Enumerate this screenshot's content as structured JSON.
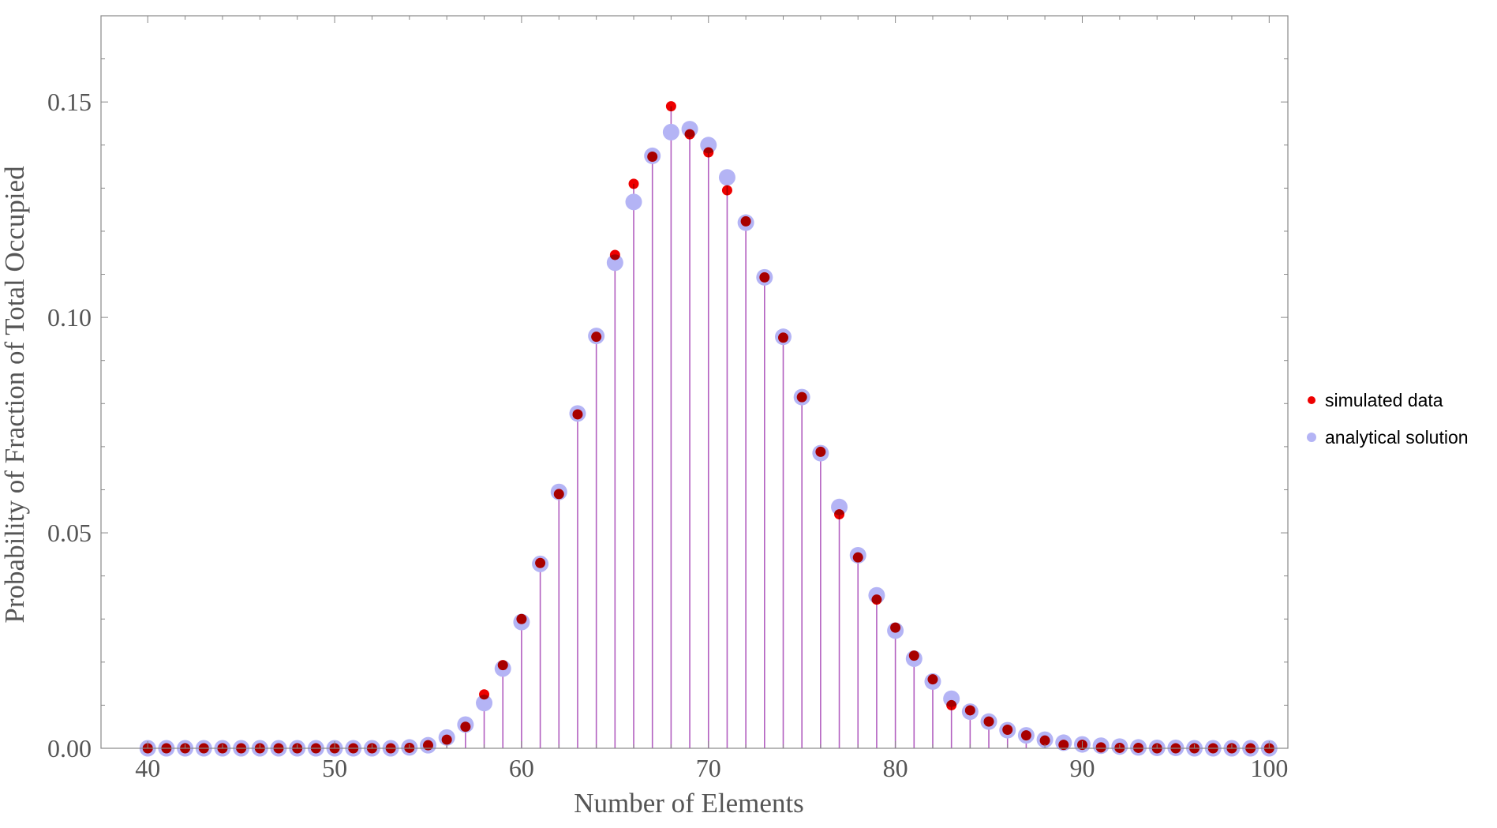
{
  "chart_data": {
    "type": "scatter",
    "xlabel": "Number of Elements",
    "ylabel": "Probability of Fraction of Total Occupied",
    "xlim": [
      37.5,
      101
    ],
    "ylim": [
      0,
      0.17
    ],
    "xticks": [
      40,
      50,
      60,
      70,
      80,
      90,
      100
    ],
    "yticks": [
      0,
      0.05,
      0.1,
      0.15
    ],
    "ytick_labels": [
      "0.00",
      "0.05",
      "0.10",
      "0.15"
    ],
    "legend_position": "right",
    "stems": true,
    "stem_color": "#b25fc0",
    "grid": false,
    "x": [
      40,
      41,
      42,
      43,
      44,
      45,
      46,
      47,
      48,
      49,
      50,
      51,
      52,
      53,
      54,
      55,
      56,
      57,
      58,
      59,
      60,
      61,
      62,
      63,
      64,
      65,
      66,
      67,
      68,
      69,
      70,
      71,
      72,
      73,
      74,
      75,
      76,
      77,
      78,
      79,
      80,
      81,
      82,
      83,
      84,
      85,
      86,
      87,
      88,
      89,
      90,
      91,
      92,
      93,
      94,
      95,
      96,
      97,
      98,
      99,
      100
    ],
    "series": [
      {
        "name": "simulated data",
        "color": "#ee0000",
        "values": [
          0,
          0,
          0,
          0,
          0,
          0,
          0,
          0,
          0,
          0,
          0,
          0,
          0,
          0,
          0.0001,
          0.0007,
          0.002,
          0.005,
          0.0125,
          0.0193,
          0.03,
          0.043,
          0.059,
          0.0775,
          0.0955,
          0.1145,
          0.131,
          0.1373,
          0.149,
          0.1425,
          0.1383,
          0.1295,
          0.1223,
          0.1093,
          0.0953,
          0.0815,
          0.0688,
          0.0543,
          0.0443,
          0.0345,
          0.028,
          0.0215,
          0.016,
          0.01,
          0.0088,
          0.0062,
          0.0043,
          0.003,
          0.0018,
          0.0008,
          0.0008,
          0.0002,
          0.0001,
          0.0001,
          0,
          0,
          0,
          0,
          0,
          0,
          0
        ]
      },
      {
        "name": "analytical solution",
        "color": "#b4b4f5",
        "values": [
          0,
          0,
          0,
          0,
          0,
          0,
          0,
          0,
          0,
          0,
          0,
          0,
          0,
          0,
          0.0002,
          0.0007,
          0.0025,
          0.0055,
          0.0105,
          0.0185,
          0.0293,
          0.0428,
          0.0595,
          0.0777,
          0.0957,
          0.1127,
          0.1268,
          0.1375,
          0.143,
          0.1437,
          0.14,
          0.1325,
          0.122,
          0.1093,
          0.0955,
          0.0815,
          0.0685,
          0.056,
          0.0448,
          0.0355,
          0.0273,
          0.0208,
          0.0155,
          0.0115,
          0.0085,
          0.0062,
          0.0042,
          0.003,
          0.002,
          0.0013,
          0.0009,
          0.0006,
          0.0004,
          0.0002,
          0.0001,
          0.0001,
          0,
          0,
          0,
          0,
          0
        ]
      }
    ]
  }
}
